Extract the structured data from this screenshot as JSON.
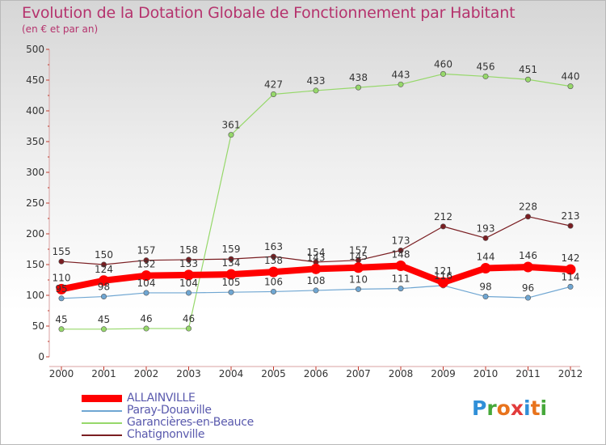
{
  "title": "Evolution de la Dotation Globale de Fonctionnement par Habitant",
  "subtitle": "(en € et par an)",
  "logo": {
    "text": "Proxiti",
    "letter_colors": [
      "#2f8fd8",
      "#46a83a",
      "#e8731c",
      "#e23b3b",
      "#2f8fd8",
      "#e8731c",
      "#46a83a"
    ]
  },
  "chart_data": {
    "type": "line",
    "title": "Evolution de la Dotation Globale de Fonctionnement par Habitant",
    "subtitle": "(en € et par an)",
    "xlabel": "",
    "ylabel": "",
    "ylim": [
      0,
      500
    ],
    "yticks": [
      0,
      50,
      100,
      150,
      200,
      250,
      300,
      350,
      400,
      450,
      500
    ],
    "grid": false,
    "legend_position": "bottom-left",
    "categories": [
      "2000",
      "2001",
      "2002",
      "2003",
      "2004",
      "2005",
      "2006",
      "2007",
      "2008",
      "2009",
      "2010",
      "2011",
      "2012"
    ],
    "series": [
      {
        "name": "Chatignonville",
        "color": "#7a1e22",
        "values": [
          155,
          150,
          157,
          158,
          159,
          163,
          154,
          157,
          173,
          212,
          193,
          228,
          213
        ]
      },
      {
        "name": "Garancières-en-Beauce",
        "color": "#96d86a",
        "values": [
          45,
          45,
          46,
          46,
          361,
          427,
          433,
          438,
          443,
          460,
          456,
          451,
          440
        ]
      },
      {
        "name": "Paray-Douaville",
        "color": "#6fa6d2",
        "values": [
          95,
          98,
          104,
          104,
          105,
          106,
          108,
          110,
          111,
          116,
          98,
          96,
          114
        ]
      },
      {
        "name": "ALLAINVILLE",
        "color": "#ff0000",
        "values": [
          110,
          124,
          132,
          133,
          134,
          138,
          143,
          145,
          148,
          121,
          144,
          146,
          142
        ]
      }
    ]
  },
  "legend": [
    {
      "name": "ALLAINVILLE",
      "color": "#ff0000",
      "style": "thick"
    },
    {
      "name": "Paray-Douaville",
      "color": "#6fa6d2",
      "style": "thin"
    },
    {
      "name": "Garancières-en-Beauce",
      "color": "#96d86a",
      "style": "thin"
    },
    {
      "name": "Chatignonville",
      "color": "#7a1e22",
      "style": "thin"
    }
  ]
}
